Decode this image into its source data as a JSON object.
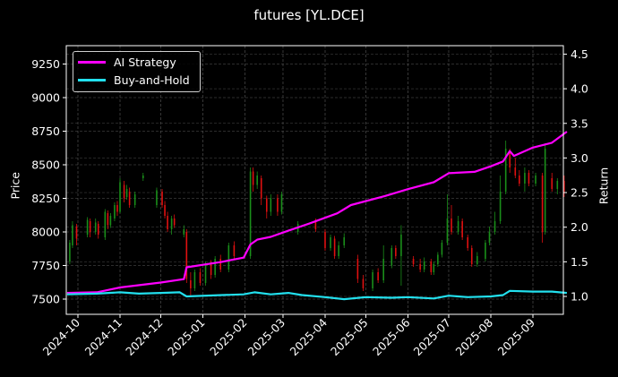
{
  "chart_data": {
    "type": "line",
    "title": "futures [YL.DCE]",
    "xlabel": "",
    "ylabel": "Price",
    "ylabel_right": "Return",
    "grid": true,
    "legend_position": "upper left",
    "x_ticks": [
      "2024-10",
      "2024-11",
      "2024-12",
      "2025-01",
      "2025-02",
      "2025-03",
      "2025-04",
      "2025-05",
      "2025-06",
      "2025-07",
      "2025-08",
      "2025-09"
    ],
    "y_ticks_left": [
      7500,
      7750,
      8000,
      8250,
      8500,
      8750,
      9000,
      9250
    ],
    "y_ticks_right": [
      1.0,
      1.5,
      2.0,
      2.5,
      3.0,
      3.5,
      4.0,
      4.5
    ],
    "ylim_left": [
      7390,
      9390
    ],
    "ylim_right": [
      0.74,
      4.62
    ],
    "xlim": [
      "2024-09-23",
      "2025-09-26"
    ],
    "series": [
      {
        "name": "AI Strategy",
        "axis": "right",
        "color": "#ff00ff",
        "x": [
          "2024-09-23",
          "2024-10-15",
          "2024-11-01",
          "2024-12-01",
          "2024-12-18",
          "2024-12-20",
          "2025-01-15",
          "2025-01-31",
          "2025-02-05",
          "2025-02-10",
          "2025-02-20",
          "2025-03-05",
          "2025-03-20",
          "2025-04-10",
          "2025-04-20",
          "2025-05-15",
          "2025-06-01",
          "2025-06-20",
          "2025-07-01",
          "2025-07-20",
          "2025-08-01",
          "2025-08-10",
          "2025-08-15",
          "2025-08-18",
          "2025-09-01",
          "2025-09-15",
          "2025-09-26"
        ],
        "values": [
          1.05,
          1.06,
          1.13,
          1.2,
          1.25,
          1.42,
          1.5,
          1.56,
          1.75,
          1.82,
          1.86,
          1.95,
          2.05,
          2.2,
          2.32,
          2.45,
          2.55,
          2.65,
          2.78,
          2.8,
          2.88,
          2.95,
          3.1,
          3.03,
          3.15,
          3.22,
          3.38
        ]
      },
      {
        "name": "Buy-and-Hold",
        "axis": "right",
        "color": "#22e0ee",
        "x": [
          "2024-09-23",
          "2024-10-15",
          "2024-11-01",
          "2024-11-15",
          "2024-12-01",
          "2024-12-15",
          "2024-12-20",
          "2025-01-15",
          "2025-01-31",
          "2025-02-08",
          "2025-02-20",
          "2025-03-05",
          "2025-03-15",
          "2025-04-01",
          "2025-04-15",
          "2025-05-01",
          "2025-05-20",
          "2025-06-01",
          "2025-06-20",
          "2025-07-01",
          "2025-07-15",
          "2025-08-01",
          "2025-08-10",
          "2025-08-15",
          "2025-09-01",
          "2025-09-15",
          "2025-09-26"
        ],
        "values": [
          1.03,
          1.04,
          1.06,
          1.04,
          1.05,
          1.06,
          1.0,
          1.02,
          1.03,
          1.06,
          1.03,
          1.05,
          1.02,
          0.99,
          0.96,
          0.99,
          0.98,
          0.99,
          0.97,
          1.01,
          0.99,
          1.0,
          1.02,
          1.08,
          1.07,
          1.07,
          1.05
        ]
      }
    ],
    "candles_note": "Daily price candles on left axis (green=up, red=down), approximate",
    "candles": [
      [
        "2024-09-25",
        7780,
        7920,
        7760,
        7940
      ],
      [
        "2024-09-27",
        7900,
        8050,
        7880,
        8080
      ],
      [
        "2024-09-30",
        8040,
        7950,
        7900,
        8060
      ],
      [
        "2024-10-08",
        7980,
        8090,
        7960,
        8110
      ],
      [
        "2024-10-10",
        8080,
        8000,
        7960,
        8100
      ],
      [
        "2024-10-14",
        8000,
        8070,
        7980,
        8100
      ],
      [
        "2024-10-16",
        8060,
        7980,
        7950,
        8080
      ],
      [
        "2024-10-21",
        7960,
        8150,
        7940,
        8170
      ],
      [
        "2024-10-23",
        8140,
        8050,
        8020,
        8160
      ],
      [
        "2024-10-25",
        8050,
        8120,
        8030,
        8140
      ],
      [
        "2024-10-28",
        8100,
        8200,
        8080,
        8220
      ],
      [
        "2024-10-30",
        8200,
        8150,
        8120,
        8230
      ],
      [
        "2024-11-01",
        8150,
        8370,
        8140,
        8400
      ],
      [
        "2024-11-04",
        8350,
        8250,
        8220,
        8380
      ],
      [
        "2024-11-06",
        8260,
        8320,
        8240,
        8350
      ],
      [
        "2024-11-08",
        8300,
        8200,
        8180,
        8330
      ],
      [
        "2024-11-12",
        8200,
        8280,
        8180,
        8300
      ],
      [
        "2024-11-18",
        8400,
        8420,
        8380,
        8440
      ],
      [
        "2024-11-28",
        8200,
        8310,
        8180,
        8330
      ],
      [
        "2024-12-02",
        8300,
        8200,
        8180,
        8320
      ],
      [
        "2024-12-04",
        8200,
        8120,
        8100,
        8230
      ],
      [
        "2024-12-06",
        8120,
        8020,
        8000,
        8150
      ],
      [
        "2024-12-09",
        8020,
        8100,
        7980,
        8120
      ],
      [
        "2024-12-11",
        8100,
        8050,
        8030,
        8130
      ],
      [
        "2024-12-18",
        7980,
        8020,
        7960,
        8050
      ],
      [
        "2024-12-20",
        8000,
        7650,
        7620,
        8020
      ],
      [
        "2024-12-23",
        7640,
        7580,
        7520,
        7700
      ],
      [
        "2024-12-26",
        7580,
        7700,
        7560,
        7720
      ],
      [
        "2024-12-30",
        7700,
        7620,
        7600,
        7730
      ],
      [
        "2025-01-03",
        7620,
        7760,
        7600,
        7780
      ],
      [
        "2025-01-07",
        7760,
        7680,
        7650,
        7790
      ],
      [
        "2025-01-10",
        7680,
        7800,
        7660,
        7820
      ],
      [
        "2025-01-14",
        7800,
        7720,
        7700,
        7830
      ],
      [
        "2025-01-20",
        7720,
        7900,
        7700,
        7920
      ],
      [
        "2025-01-24",
        7900,
        7820,
        7800,
        7930
      ],
      [
        "2025-02-05",
        7820,
        8450,
        7800,
        8480
      ],
      [
        "2025-02-07",
        8450,
        8350,
        8300,
        8480
      ],
      [
        "2025-02-10",
        8350,
        8420,
        8320,
        8450
      ],
      [
        "2025-02-13",
        8400,
        8250,
        8200,
        8420
      ],
      [
        "2025-02-17",
        8250,
        8150,
        8100,
        8270
      ],
      [
        "2025-02-20",
        8150,
        8250,
        8120,
        8280
      ],
      [
        "2025-02-25",
        8250,
        8150,
        8120,
        8280
      ],
      [
        "2025-02-28",
        8150,
        8280,
        8130,
        8300
      ],
      [
        "2025-03-12",
        8000,
        8060,
        7980,
        8080
      ],
      [
        "2025-03-25",
        8080,
        8020,
        8000,
        8100
      ],
      [
        "2025-04-01",
        8000,
        7880,
        7860,
        8020
      ],
      [
        "2025-04-05",
        7880,
        7960,
        7860,
        7980
      ],
      [
        "2025-04-08",
        7950,
        7820,
        7800,
        7970
      ],
      [
        "2025-04-11",
        7820,
        7900,
        7800,
        7930
      ],
      [
        "2025-04-15",
        7900,
        7960,
        7880,
        7990
      ],
      [
        "2025-04-25",
        7800,
        7650,
        7620,
        7830
      ],
      [
        "2025-04-29",
        7650,
        7580,
        7560,
        7680
      ],
      [
        "2025-05-06",
        7580,
        7700,
        7560,
        7720
      ],
      [
        "2025-05-10",
        7700,
        7640,
        7620,
        7730
      ],
      [
        "2025-05-14",
        7640,
        7800,
        7620,
        7900
      ],
      [
        "2025-05-20",
        7750,
        7880,
        7730,
        7900
      ],
      [
        "2025-05-23",
        7880,
        7820,
        7800,
        7900
      ],
      [
        "2025-05-27",
        7820,
        7980,
        7600,
        8050
      ],
      [
        "2025-06-05",
        7800,
        7760,
        7740,
        7820
      ],
      [
        "2025-06-10",
        7760,
        7720,
        7700,
        7800
      ],
      [
        "2025-06-13",
        7720,
        7780,
        7700,
        7810
      ],
      [
        "2025-06-18",
        7780,
        7700,
        7680,
        7800
      ],
      [
        "2025-06-20",
        7700,
        7760,
        7680,
        7780
      ],
      [
        "2025-06-23",
        7760,
        7830,
        7740,
        7850
      ],
      [
        "2025-06-26",
        7830,
        7920,
        7810,
        7940
      ],
      [
        "2025-06-30",
        7920,
        8100,
        7900,
        8280
      ],
      [
        "2025-07-03",
        8100,
        8000,
        7980,
        8200
      ],
      [
        "2025-07-08",
        8000,
        8080,
        7980,
        8120
      ],
      [
        "2025-07-11",
        8080,
        7960,
        7940,
        8100
      ],
      [
        "2025-07-15",
        7960,
        7880,
        7860,
        7980
      ],
      [
        "2025-07-18",
        7880,
        7760,
        7740,
        7900
      ],
      [
        "2025-07-22",
        7760,
        7820,
        7740,
        7850
      ],
      [
        "2025-07-28",
        7800,
        7920,
        7780,
        7940
      ],
      [
        "2025-07-31",
        7920,
        8000,
        7900,
        8040
      ],
      [
        "2025-08-04",
        8000,
        8080,
        7980,
        8150
      ],
      [
        "2025-08-08",
        8080,
        8300,
        8060,
        8420
      ],
      [
        "2025-08-12",
        8300,
        8620,
        8280,
        8680
      ],
      [
        "2025-08-15",
        8600,
        8480,
        8440,
        8620
      ],
      [
        "2025-08-19",
        8480,
        8420,
        8400,
        8550
      ],
      [
        "2025-08-22",
        8420,
        8360,
        8340,
        8460
      ],
      [
        "2025-08-26",
        8360,
        8440,
        8300,
        8480
      ],
      [
        "2025-08-29",
        8440,
        8360,
        8340,
        8460
      ],
      [
        "2025-09-03",
        8360,
        8420,
        8340,
        8440
      ],
      [
        "2025-09-08",
        8420,
        8000,
        7920,
        8440
      ],
      [
        "2025-09-10",
        8000,
        8620,
        7980,
        8660
      ],
      [
        "2025-09-15",
        8400,
        8320,
        8300,
        8440
      ],
      [
        "2025-09-19",
        8320,
        8380,
        8280,
        8400
      ],
      [
        "2025-09-24",
        8380,
        8300,
        8260,
        8420
      ]
    ]
  },
  "labels": {
    "title": "futures [YL.DCE]",
    "ylabel_left": "Price",
    "ylabel_right": "Return",
    "legend": [
      {
        "label": "AI Strategy",
        "color": "#ff00ff"
      },
      {
        "label": "Buy-and-Hold",
        "color": "#22e0ee"
      }
    ]
  }
}
